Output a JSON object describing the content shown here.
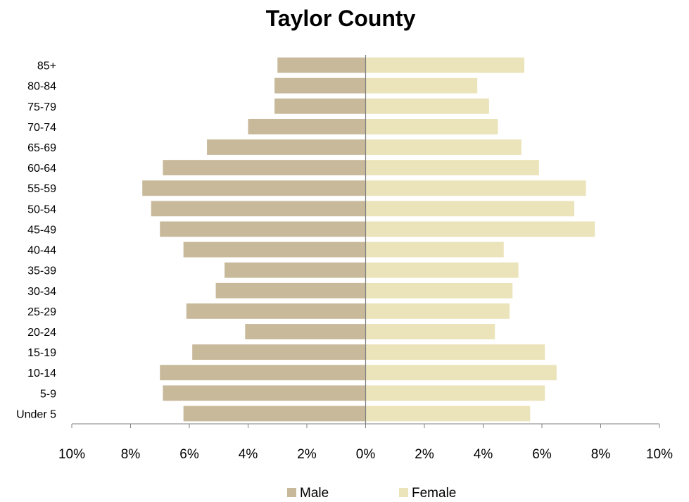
{
  "chart_data": {
    "type": "bar",
    "orientation": "horizontal",
    "title": "Taylor County",
    "xlabel": "",
    "ylabel": "",
    "categories": [
      "85+",
      "80-84",
      "75-79",
      "70-74",
      "65-69",
      "60-64",
      "55-59",
      "50-54",
      "45-49",
      "40-44",
      "35-39",
      "30-34",
      "25-29",
      "20-24",
      "15-19",
      "10-14",
      "5-9",
      "Under 5"
    ],
    "series": [
      {
        "name": "Male",
        "color": "#c7b99a",
        "values": [
          3.0,
          3.1,
          3.1,
          4.0,
          5.4,
          6.9,
          7.6,
          7.3,
          7.0,
          6.2,
          4.8,
          5.1,
          6.1,
          4.1,
          5.9,
          7.0,
          6.9,
          6.2
        ]
      },
      {
        "name": "Female",
        "color": "#ebe3b9",
        "values": [
          5.4,
          3.8,
          4.2,
          4.5,
          5.3,
          5.9,
          7.5,
          7.1,
          7.8,
          4.7,
          5.2,
          5.0,
          4.9,
          4.4,
          6.1,
          6.5,
          6.1,
          5.6
        ]
      }
    ],
    "xlim": [
      -10,
      10
    ],
    "x_ticks": [
      "10%",
      "8%",
      "6%",
      "4%",
      "2%",
      "0%",
      "2%",
      "4%",
      "6%",
      "8%",
      "10%"
    ],
    "grid": false,
    "legend": "bottom"
  }
}
